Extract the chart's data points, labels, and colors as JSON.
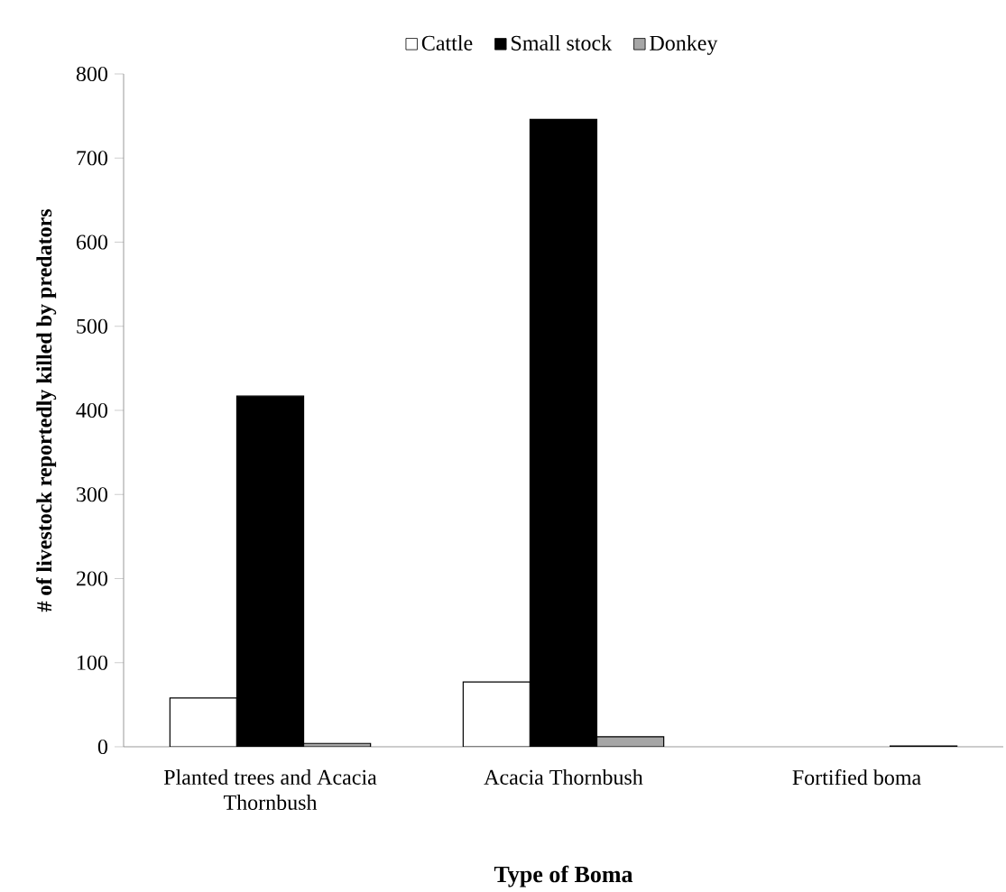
{
  "chart_data": {
    "type": "bar",
    "xlabel": "Type of Boma",
    "ylabel": "# of livestock reportedly killed by predators",
    "categories": [
      "Planted trees and Acacia Thornbush",
      "Acacia Thornbush",
      "Fortified boma"
    ],
    "series": [
      {
        "name": "Cattle",
        "color": "#ffffff",
        "values": [
          58,
          77,
          null
        ]
      },
      {
        "name": "Small stock",
        "color": "#000000",
        "values": [
          417,
          746,
          null
        ]
      },
      {
        "name": "Donkey",
        "color": "#a6a6a6",
        "values": [
          4,
          12,
          1
        ]
      }
    ],
    "ylim": [
      0,
      800
    ],
    "yticks": [
      0,
      100,
      200,
      300,
      400,
      500,
      600,
      700,
      800
    ],
    "legend": "top",
    "grid": false
  }
}
